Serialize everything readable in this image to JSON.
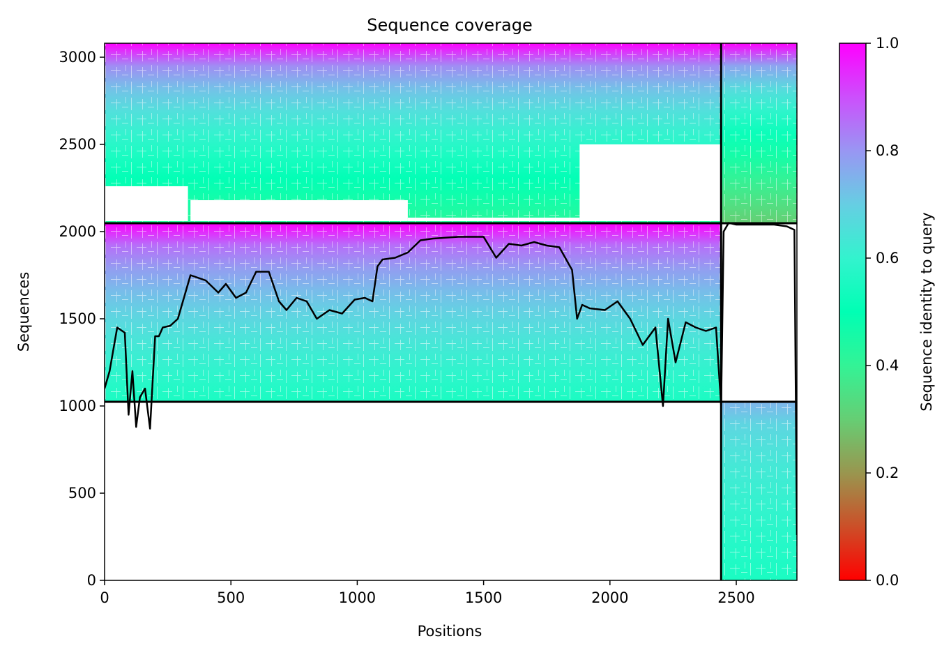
{
  "chart_data": {
    "type": "heatmap",
    "title": "Sequence coverage",
    "xlabel": "Positions",
    "ylabel": "Sequences",
    "xlim": [
      0,
      2740
    ],
    "ylim": [
      0,
      3080
    ],
    "xticks": [
      0,
      500,
      1000,
      1500,
      2000,
      2500
    ],
    "yticks": [
      0,
      500,
      1000,
      1500,
      2000,
      2500,
      3000
    ],
    "colorbar": {
      "label": "Sequence identity to query",
      "range": [
        0.0,
        1.0
      ],
      "ticks": [
        0.0,
        0.2,
        0.4,
        0.6,
        0.8,
        1.0
      ],
      "tick_labels": [
        "0.0",
        "0.2",
        "0.4",
        "0.6",
        "0.8",
        "1.0"
      ],
      "colormap": "rainbow_r"
    },
    "blocks": [
      {
        "x": [
          0,
          2440
        ],
        "y": [
          2048,
          3080
        ],
        "identity_top": 1.0,
        "identity_bottom": 0.42
      },
      {
        "x": [
          2440,
          2740
        ],
        "y": [
          2048,
          3080
        ],
        "identity_top": 1.0,
        "identity_bottom": 0.3
      },
      {
        "x": [
          0,
          2440
        ],
        "y": [
          1024,
          2048
        ],
        "identity_top": 1.0,
        "identity_bottom": 0.55
      },
      {
        "x": [
          2440,
          2740
        ],
        "y": [
          0,
          1024
        ],
        "identity_top": 0.75,
        "identity_bottom": 0.55
      }
    ],
    "block_dividers": {
      "x": 2440,
      "y": [
        1024,
        2048
      ]
    },
    "coverage_line": {
      "x": [
        0,
        20,
        50,
        80,
        95,
        110,
        125,
        140,
        160,
        180,
        200,
        215,
        230,
        260,
        290,
        340,
        400,
        450,
        480,
        520,
        560,
        600,
        650,
        690,
        720,
        760,
        800,
        840,
        890,
        940,
        990,
        1030,
        1060,
        1080,
        1100,
        1150,
        1200,
        1250,
        1300,
        1400,
        1500,
        1550,
        1600,
        1650,
        1700,
        1750,
        1800,
        1850,
        1870,
        1890,
        1920,
        1980,
        2030,
        2080,
        2130,
        2180,
        2210,
        2230,
        2260,
        2300,
        2340,
        2380,
        2420,
        2440,
        2450,
        2470,
        2500,
        2550,
        2600,
        2650,
        2700,
        2730,
        2740
      ],
      "y": [
        1100,
        1200,
        1450,
        1420,
        950,
        1200,
        880,
        1050,
        1100,
        870,
        1400,
        1400,
        1450,
        1460,
        1500,
        1750,
        1720,
        1650,
        1700,
        1620,
        1650,
        1770,
        1770,
        1600,
        1550,
        1620,
        1600,
        1500,
        1550,
        1530,
        1610,
        1620,
        1600,
        1800,
        1840,
        1850,
        1880,
        1950,
        1960,
        1970,
        1970,
        1850,
        1930,
        1920,
        1940,
        1920,
        1910,
        1780,
        1500,
        1580,
        1560,
        1550,
        1600,
        1500,
        1350,
        1450,
        1000,
        1500,
        1250,
        1480,
        1450,
        1430,
        1450,
        1000,
        2000,
        2050,
        2040,
        2040,
        2040,
        2040,
        2030,
        2010,
        260
      ]
    }
  }
}
